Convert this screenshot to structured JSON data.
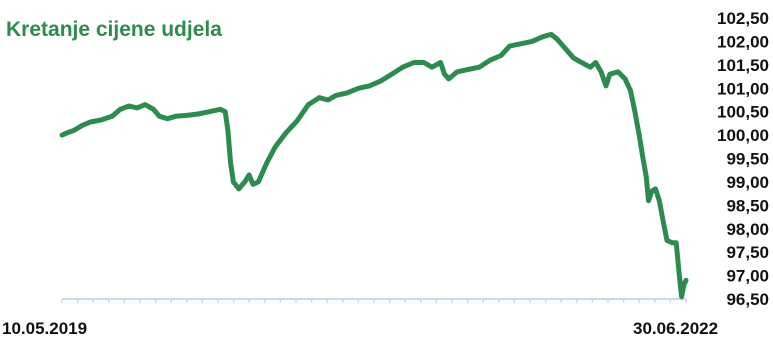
{
  "chart_data": {
    "type": "line",
    "title": "Kretanje cijene udjela",
    "xlabel": "",
    "ylabel": "",
    "x_start_label": "10.05.2019",
    "x_end_label": "30.06.2022",
    "ylim": [
      96.5,
      102.5
    ],
    "yticks": [
      "102,50",
      "102,00",
      "101,50",
      "101,00",
      "100,50",
      "100,00",
      "99,50",
      "99,00",
      "98,50",
      "98,00",
      "97,50",
      "97,00",
      "96,50"
    ],
    "grid": false,
    "legend": "none",
    "series": [
      {
        "color": "#2e8b4e",
        "points": [
          [
            "2019-05-10",
            100.0
          ],
          [
            "2019-05-20",
            100.05
          ],
          [
            "2019-06-01",
            100.1
          ],
          [
            "2019-06-15",
            100.2
          ],
          [
            "2019-07-01",
            100.28
          ],
          [
            "2019-07-20",
            100.32
          ],
          [
            "2019-08-10",
            100.4
          ],
          [
            "2019-08-25",
            100.55
          ],
          [
            "2019-09-10",
            100.62
          ],
          [
            "2019-09-25",
            100.58
          ],
          [
            "2019-10-10",
            100.65
          ],
          [
            "2019-10-25",
            100.55
          ],
          [
            "2019-11-05",
            100.4
          ],
          [
            "2019-11-20",
            100.35
          ],
          [
            "2019-12-05",
            100.4
          ],
          [
            "2019-12-25",
            100.42
          ],
          [
            "2020-01-15",
            100.45
          ],
          [
            "2020-02-05",
            100.5
          ],
          [
            "2020-02-25",
            100.55
          ],
          [
            "2020-03-05",
            100.5
          ],
          [
            "2020-03-10",
            100.1
          ],
          [
            "2020-03-15",
            99.4
          ],
          [
            "2020-03-20",
            99.0
          ],
          [
            "2020-03-30",
            98.85
          ],
          [
            "2020-04-10",
            99.0
          ],
          [
            "2020-04-18",
            99.15
          ],
          [
            "2020-04-25",
            98.95
          ],
          [
            "2020-05-05",
            99.0
          ],
          [
            "2020-05-20",
            99.4
          ],
          [
            "2020-06-05",
            99.75
          ],
          [
            "2020-06-25",
            100.05
          ],
          [
            "2020-07-15",
            100.3
          ],
          [
            "2020-08-05",
            100.65
          ],
          [
            "2020-08-25",
            100.8
          ],
          [
            "2020-09-10",
            100.75
          ],
          [
            "2020-09-25",
            100.85
          ],
          [
            "2020-10-15",
            100.9
          ],
          [
            "2020-11-05",
            101.0
          ],
          [
            "2020-11-25",
            101.05
          ],
          [
            "2020-12-15",
            101.15
          ],
          [
            "2021-01-05",
            101.3
          ],
          [
            "2021-01-25",
            101.45
          ],
          [
            "2021-02-15",
            101.55
          ],
          [
            "2021-03-05",
            101.55
          ],
          [
            "2021-03-20",
            101.45
          ],
          [
            "2021-04-05",
            101.55
          ],
          [
            "2021-04-12",
            101.3
          ],
          [
            "2021-04-20",
            101.2
          ],
          [
            "2021-05-05",
            101.35
          ],
          [
            "2021-05-25",
            101.4
          ],
          [
            "2021-06-15",
            101.45
          ],
          [
            "2021-07-05",
            101.6
          ],
          [
            "2021-07-25",
            101.7
          ],
          [
            "2021-08-10",
            101.9
          ],
          [
            "2021-08-30",
            101.95
          ],
          [
            "2021-09-20",
            102.0
          ],
          [
            "2021-10-10",
            102.1
          ],
          [
            "2021-10-25",
            102.15
          ],
          [
            "2021-11-05",
            102.05
          ],
          [
            "2021-11-20",
            101.85
          ],
          [
            "2021-12-05",
            101.65
          ],
          [
            "2021-12-20",
            101.55
          ],
          [
            "2022-01-05",
            101.45
          ],
          [
            "2022-01-15",
            101.55
          ],
          [
            "2022-01-25",
            101.35
          ],
          [
            "2022-02-03",
            101.05
          ],
          [
            "2022-02-10",
            101.3
          ],
          [
            "2022-02-25",
            101.35
          ],
          [
            "2022-03-10",
            101.2
          ],
          [
            "2022-03-20",
            100.95
          ],
          [
            "2022-03-28",
            100.5
          ],
          [
            "2022-04-05",
            100.0
          ],
          [
            "2022-04-12",
            99.5
          ],
          [
            "2022-04-18",
            99.1
          ],
          [
            "2022-04-22",
            98.6
          ],
          [
            "2022-04-28",
            98.8
          ],
          [
            "2022-05-05",
            98.85
          ],
          [
            "2022-05-12",
            98.6
          ],
          [
            "2022-05-20",
            98.1
          ],
          [
            "2022-05-26",
            97.75
          ],
          [
            "2022-06-05",
            97.7
          ],
          [
            "2022-06-12",
            97.7
          ],
          [
            "2022-06-17",
            97.1
          ],
          [
            "2022-06-22",
            96.55
          ],
          [
            "2022-06-26",
            96.8
          ],
          [
            "2022-06-30",
            96.9
          ]
        ]
      }
    ],
    "colors": {
      "title": "#2e8b4e",
      "line": "#2e8b4e",
      "axis": "#c6d9ef",
      "text": "#111111"
    }
  }
}
